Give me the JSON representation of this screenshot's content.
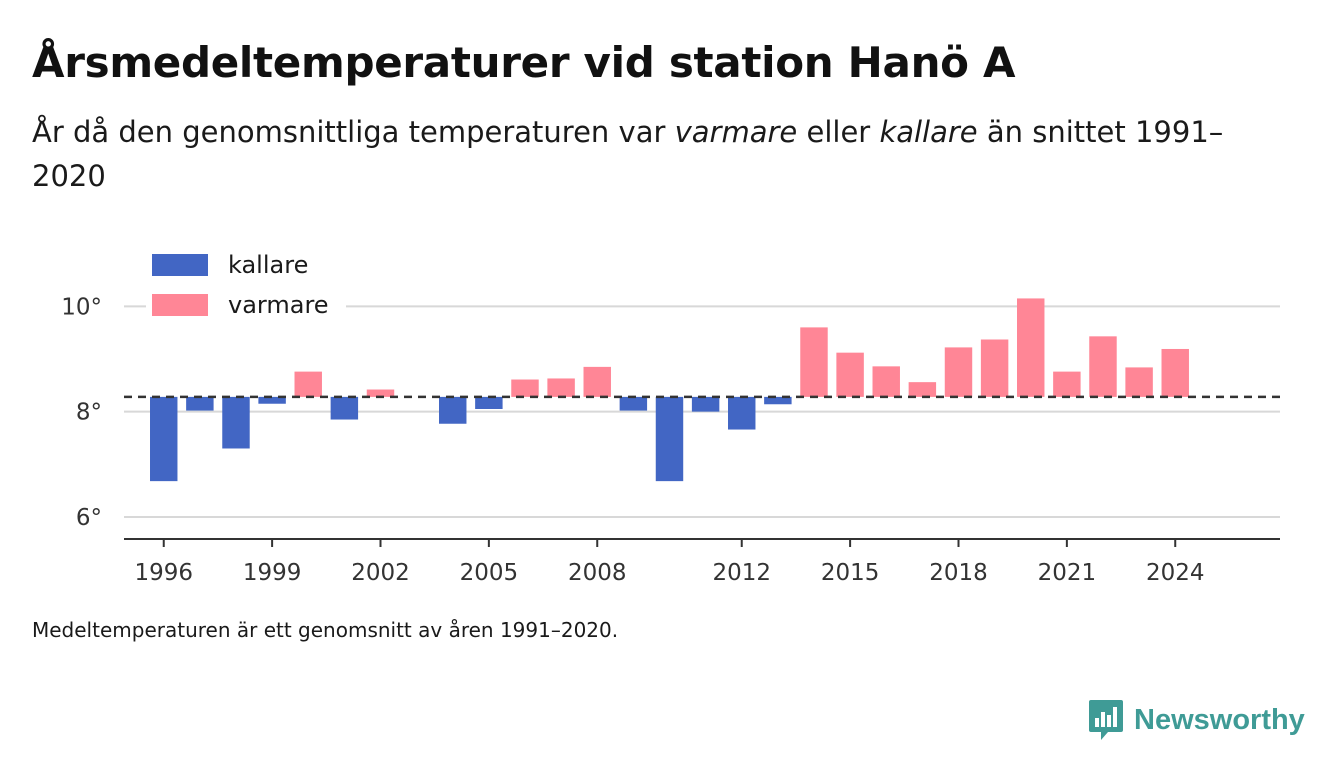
{
  "title": "Årsmedeltemperaturer vid station Hanö A",
  "subtitle": {
    "part1": "År då den genomsnittliga temperaturen var ",
    "warm_word": "varmare",
    "part2": " eller ",
    "cold_word": "kallare",
    "part3": " än snittet 1991–2020"
  },
  "footnote": "Medeltemperaturen är ett genomsnitt av åren 1991–2020.",
  "brand": "Newsworthy",
  "colors": {
    "cold": "#4266c4",
    "warm": "#ff8696",
    "reference_line": "#333333",
    "grid": "#d8d8d8",
    "brand": "#3f9b96"
  },
  "chart_data": {
    "type": "bar",
    "baseline": 8.28,
    "ylim": [
      5.6,
      10.5
    ],
    "yticks": [
      {
        "value": 6,
        "label": "6°"
      },
      {
        "value": 8,
        "label": "8°"
      },
      {
        "value": 10,
        "label": "10°"
      }
    ],
    "xlim": [
      1994.9,
      2026.9
    ],
    "xticks": [
      {
        "value": 1996,
        "label": "1996"
      },
      {
        "value": 1999,
        "label": "1999"
      },
      {
        "value": 2002,
        "label": "2002"
      },
      {
        "value": 2005,
        "label": "2005"
      },
      {
        "value": 2008,
        "label": "2008"
      },
      {
        "value": 2012,
        "label": "2012"
      },
      {
        "value": 2015,
        "label": "2015"
      },
      {
        "value": 2018,
        "label": "2018"
      },
      {
        "value": 2021,
        "label": "2021"
      },
      {
        "value": 2024,
        "label": "2024"
      }
    ],
    "legend": {
      "position": "top-left",
      "entries": [
        {
          "key": "cold",
          "label": "kallare"
        },
        {
          "key": "warm",
          "label": "varmare"
        }
      ]
    },
    "grid": true,
    "reference_line": "dashed",
    "series": [
      {
        "name": "kallare",
        "color_key": "cold",
        "points": [
          {
            "year": 1996,
            "value": 6.68
          },
          {
            "year": 1997,
            "value": 8.02
          },
          {
            "year": 1998,
            "value": 7.3
          },
          {
            "year": 1999,
            "value": 8.15
          },
          {
            "year": 2001,
            "value": 7.85
          },
          {
            "year": 2004,
            "value": 7.77
          },
          {
            "year": 2005,
            "value": 8.05
          },
          {
            "year": 2009,
            "value": 8.02
          },
          {
            "year": 2010,
            "value": 6.68
          },
          {
            "year": 2011,
            "value": 8.0
          },
          {
            "year": 2012,
            "value": 7.66
          },
          {
            "year": 2013,
            "value": 8.14
          }
        ]
      },
      {
        "name": "varmare",
        "color_key": "warm",
        "points": [
          {
            "year": 2000,
            "value": 8.76
          },
          {
            "year": 2002,
            "value": 8.42
          },
          {
            "year": 2006,
            "value": 8.61
          },
          {
            "year": 2007,
            "value": 8.63
          },
          {
            "year": 2008,
            "value": 8.85
          },
          {
            "year": 2014,
            "value": 9.6
          },
          {
            "year": 2015,
            "value": 9.12
          },
          {
            "year": 2016,
            "value": 8.86
          },
          {
            "year": 2017,
            "value": 8.56
          },
          {
            "year": 2018,
            "value": 9.22
          },
          {
            "year": 2019,
            "value": 9.37
          },
          {
            "year": 2020,
            "value": 10.15
          },
          {
            "year": 2021,
            "value": 8.76
          },
          {
            "year": 2022,
            "value": 9.43
          },
          {
            "year": 2023,
            "value": 8.84
          },
          {
            "year": 2024,
            "value": 9.19
          }
        ]
      }
    ]
  }
}
